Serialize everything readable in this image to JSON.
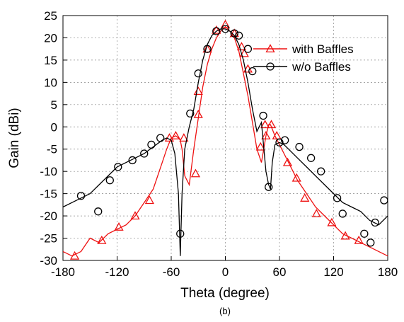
{
  "chart_data": {
    "type": "line",
    "xlabel": "Theta (degree)",
    "ylabel": "Gain (dBi)",
    "caption": "(b)",
    "xlim": [
      -180,
      180
    ],
    "ylim": [
      -30,
      25
    ],
    "xticks": [
      -180,
      -120,
      -60,
      0,
      60,
      120,
      180
    ],
    "yticks": [
      -30,
      -25,
      -20,
      -15,
      -10,
      -5,
      0,
      5,
      10,
      15,
      20,
      25
    ],
    "grid": true,
    "legend_position": "top-right",
    "series": [
      {
        "name": "with Baffles",
        "color": "#ee1111",
        "marker": "triangle",
        "x": [
          -180,
          -170,
          -160,
          -150,
          -140,
          -130,
          -120,
          -110,
          -100,
          -90,
          -80,
          -70,
          -65,
          -60,
          -55,
          -52,
          -50,
          -48,
          -45,
          -40,
          -35,
          -30,
          -25,
          -20,
          -15,
          -10,
          -5,
          0,
          5,
          10,
          15,
          20,
          25,
          30,
          35,
          40,
          45,
          48,
          50,
          52,
          55,
          60,
          65,
          70,
          80,
          90,
          100,
          110,
          120,
          130,
          140,
          150,
          160,
          170,
          180
        ],
        "y": [
          -28,
          -29,
          -28,
          -25,
          -26,
          -24,
          -23,
          -22,
          -20,
          -17,
          -14,
          -8,
          -5,
          -2.5,
          -2,
          -2.5,
          -3,
          -5,
          -11,
          -13,
          -5,
          2,
          9,
          14,
          17.5,
          20,
          21.5,
          22.5,
          21.5,
          20,
          17,
          12,
          7,
          1,
          -5,
          -8,
          -2,
          0.5,
          0.5,
          -0.5,
          -2,
          -4,
          -6,
          -8,
          -12,
          -15,
          -18,
          -20,
          -22,
          -24,
          -25,
          -26,
          -27,
          -28,
          -29
        ],
        "markers": [
          [
            -167,
            -29
          ],
          [
            -137,
            -25.5
          ],
          [
            -118,
            -22.5
          ],
          [
            -100,
            -20
          ],
          [
            -84,
            -16.5
          ],
          [
            -62,
            -2.5
          ],
          [
            -55,
            -2
          ],
          [
            -46,
            -2.5
          ],
          [
            -33,
            -10.5
          ],
          [
            -30,
            8
          ],
          [
            -30,
            2.8
          ],
          [
            -20,
            17.5
          ],
          [
            -10,
            21.7
          ],
          [
            0,
            23
          ],
          [
            10,
            21
          ],
          [
            18,
            18
          ],
          [
            21,
            16.5
          ],
          [
            25,
            13
          ],
          [
            39,
            -4.5
          ],
          [
            44,
            0.5
          ],
          [
            45,
            -2
          ],
          [
            51,
            0.5
          ],
          [
            57,
            -2
          ],
          [
            69,
            -8
          ],
          [
            79,
            -11.5
          ],
          [
            88,
            -16
          ],
          [
            101,
            -19.5
          ],
          [
            118,
            -21.5
          ],
          [
            133,
            -24.5
          ],
          [
            148,
            -25.5
          ]
        ]
      },
      {
        "name": "w/o Baffles",
        "color": "#000000",
        "marker": "circle",
        "x": [
          -180,
          -170,
          -160,
          -150,
          -140,
          -130,
          -120,
          -110,
          -100,
          -90,
          -80,
          -70,
          -65,
          -60,
          -56,
          -52,
          -50,
          -48,
          -45,
          -40,
          -35,
          -30,
          -25,
          -20,
          -15,
          -10,
          -5,
          0,
          5,
          10,
          15,
          20,
          25,
          30,
          35,
          40,
          45,
          48,
          50,
          52,
          55,
          60,
          65,
          70,
          80,
          90,
          100,
          110,
          120,
          130,
          140,
          150,
          160,
          170,
          180
        ],
        "y": [
          -18,
          -17,
          -16,
          -15,
          -13,
          -11,
          -9,
          -8,
          -7,
          -6,
          -4.5,
          -3,
          -2.5,
          -3,
          -6,
          -15,
          -29,
          -15,
          -5,
          0,
          4,
          10,
          15,
          18.5,
          20.5,
          21.5,
          22,
          22,
          21.5,
          20.5,
          18.5,
          15,
          10,
          4,
          -1,
          1,
          -10,
          -13,
          -14,
          -8,
          -4,
          -3.5,
          -4,
          -5,
          -7,
          -9,
          -11,
          -13,
          -15,
          -17,
          -18,
          -19,
          -21,
          -22,
          -20
        ],
        "markers": [
          [
            -160,
            -15.5
          ],
          [
            -141,
            -19
          ],
          [
            -128,
            -12
          ],
          [
            -119,
            -9
          ],
          [
            -103,
            -7.5
          ],
          [
            -90,
            -6
          ],
          [
            -82,
            -4
          ],
          [
            -72,
            -2.5
          ],
          [
            -50,
            -24
          ],
          [
            -39,
            3
          ],
          [
            -30,
            12
          ],
          [
            -20,
            17.5
          ],
          [
            -10,
            21.5
          ],
          [
            0,
            22
          ],
          [
            10,
            21
          ],
          [
            15,
            20.5
          ],
          [
            25,
            17.5
          ],
          [
            30,
            12.5
          ],
          [
            42,
            2.5
          ],
          [
            48,
            -13.5
          ],
          [
            60,
            -3.5
          ],
          [
            66,
            -3
          ],
          [
            82,
            -4.5
          ],
          [
            95,
            -7
          ],
          [
            106,
            -10
          ],
          [
            124,
            -16
          ],
          [
            130,
            -19.5
          ],
          [
            154,
            -24
          ],
          [
            161,
            -26
          ],
          [
            166,
            -21.5
          ],
          [
            176,
            -16.5
          ]
        ]
      }
    ]
  }
}
